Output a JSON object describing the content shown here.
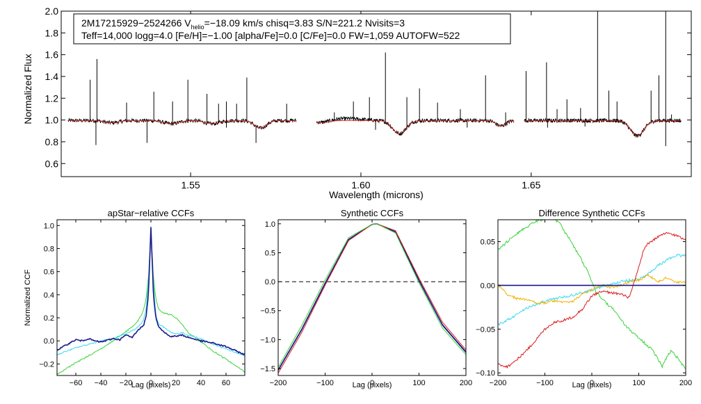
{
  "info": {
    "line1_a": "2M17215929−2524266  V",
    "line1_sub": "helio",
    "line1_b": "=−18.09 km/s  chisq=3.83  S/N=221.2  Nvisits=3",
    "line2": "Teff=14,000 logg=4.0 [Fe/H]=−1.00 [alpha/Fe]=0.0 [C/Fe]=0.0 FW=1,059 AUTOFW=522"
  },
  "colors": {
    "observed": "#000000",
    "model": "#e8261c",
    "navy": "#1a1a8c",
    "cyan": "#3ad8f0",
    "green": "#3ad13a",
    "orange": "#f0b400",
    "red": "#d81c1c"
  },
  "chart_data": [
    {
      "type": "line",
      "title": "",
      "xlabel": "Wavelength (microns)",
      "ylabel": "Normalized Flux",
      "xlim": [
        1.512,
        1.697
      ],
      "ylim": [
        0.48,
        2.0
      ],
      "xticks": [
        1.55,
        1.6,
        1.65
      ],
      "xtick_labels": [
        "1.55",
        "1.60",
        "1.65"
      ],
      "yticks": [
        0.6,
        0.8,
        1.0,
        1.2,
        1.4,
        1.6,
        1.8,
        2.0
      ],
      "ytick_labels": [
        "0.6",
        "0.8",
        "1.0",
        "1.2",
        "1.4",
        "1.6",
        "1.8",
        "2.0"
      ],
      "chips": [
        [
          1.514,
          1.581
        ],
        [
          1.587,
          1.645
        ],
        [
          1.648,
          1.694
        ]
      ],
      "broad_absorptions": [
        {
          "center": 1.5268,
          "depth": 0.02,
          "width": 0.003
        },
        {
          "center": 1.5443,
          "depth": 0.03,
          "width": 0.003
        },
        {
          "center": 1.5563,
          "depth": 0.03,
          "width": 0.003
        },
        {
          "center": 1.5705,
          "depth": 0.07,
          "width": 0.0025
        },
        {
          "center": 1.5885,
          "depth": 0.02,
          "width": 0.003
        },
        {
          "center": 1.6113,
          "depth": 0.12,
          "width": 0.0028
        },
        {
          "center": 1.6411,
          "depth": 0.05,
          "width": 0.002
        },
        {
          "center": 1.6811,
          "depth": 0.14,
          "width": 0.0028
        }
      ],
      "emission_spikes": [
        {
          "x": 1.5205,
          "y": 1.37
        },
        {
          "x": 1.5225,
          "y": 1.56
        },
        {
          "x": 1.5312,
          "y": 1.16
        },
        {
          "x": 1.5392,
          "y": 1.26
        },
        {
          "x": 1.5447,
          "y": 1.17
        },
        {
          "x": 1.5492,
          "y": 1.37
        },
        {
          "x": 1.5548,
          "y": 1.24
        },
        {
          "x": 1.5582,
          "y": 1.15
        },
        {
          "x": 1.5605,
          "y": 1.17
        },
        {
          "x": 1.5635,
          "y": 1.15
        },
        {
          "x": 1.5665,
          "y": 1.39
        },
        {
          "x": 1.5782,
          "y": 1.15
        },
        {
          "x": 1.5922,
          "y": 1.07
        },
        {
          "x": 1.5978,
          "y": 1.17
        },
        {
          "x": 1.6025,
          "y": 1.21
        },
        {
          "x": 1.6072,
          "y": 1.62
        },
        {
          "x": 1.6135,
          "y": 1.21
        },
        {
          "x": 1.6172,
          "y": 1.29
        },
        {
          "x": 1.6225,
          "y": 1.16
        },
        {
          "x": 1.6292,
          "y": 1.1
        },
        {
          "x": 1.6366,
          "y": 1.41
        },
        {
          "x": 1.6425,
          "y": 1.07
        },
        {
          "x": 1.6485,
          "y": 1.45
        },
        {
          "x": 1.6545,
          "y": 1.53
        },
        {
          "x": 1.6576,
          "y": 1.1
        },
        {
          "x": 1.6605,
          "y": 1.19
        },
        {
          "x": 1.6645,
          "y": 1.11
        },
        {
          "x": 1.6695,
          "y": 2.0
        },
        {
          "x": 1.6728,
          "y": 1.27
        },
        {
          "x": 1.6752,
          "y": 1.17
        },
        {
          "x": 1.6852,
          "y": 1.27
        },
        {
          "x": 1.6875,
          "y": 1.41
        },
        {
          "x": 1.6895,
          "y": 2.0
        },
        {
          "x": 1.6912,
          "y": 1.05
        }
      ],
      "absorption_spikes": [
        {
          "x": 1.5222,
          "y": 0.77
        },
        {
          "x": 1.5372,
          "y": 0.79
        },
        {
          "x": 1.5605,
          "y": 0.93
        },
        {
          "x": 1.5692,
          "y": 0.79
        },
        {
          "x": 1.6043,
          "y": 0.91
        },
        {
          "x": 1.6312,
          "y": 0.93
        },
        {
          "x": 1.6548,
          "y": 0.93
        },
        {
          "x": 1.6658,
          "y": 0.94
        },
        {
          "x": 1.6895,
          "y": 0.76
        }
      ],
      "series": [
        {
          "name": "observed spectrum",
          "color": "#000000"
        },
        {
          "name": "model",
          "color": "#e8261c"
        }
      ]
    },
    {
      "type": "line",
      "title": "apStar−relative CCFs",
      "xlabel": "Lag (pixels)",
      "ylabel": "Normalized CCF",
      "xlim": [
        -75,
        75
      ],
      "ylim": [
        -0.3,
        1.05
      ],
      "xticks": [
        -60,
        -40,
        -20,
        0,
        20,
        40,
        60
      ],
      "xtick_labels": [
        "−60",
        "−40",
        "−20",
        "0",
        "20",
        "40",
        "60"
      ],
      "yticks": [
        -0.2,
        0.0,
        0.2,
        0.4,
        0.6,
        0.8,
        1.0
      ],
      "ytick_labels": [
        "−0.2",
        "0.0",
        "0.2",
        "0.4",
        "0.6",
        "0.8",
        "1.0"
      ],
      "series": [
        {
          "name": "green",
          "color": "#3ad13a",
          "x": [
            -75,
            -60,
            -50,
            -40,
            -30,
            -20,
            -15,
            -10,
            -6,
            -4,
            -2,
            0,
            2,
            4,
            6,
            10,
            15,
            20,
            25,
            30,
            40,
            50,
            60,
            75
          ],
          "y": [
            -0.29,
            -0.19,
            -0.13,
            -0.07,
            0.0,
            0.08,
            0.12,
            0.18,
            0.26,
            0.36,
            0.55,
            0.95,
            0.55,
            0.36,
            0.28,
            0.24,
            0.23,
            0.2,
            0.14,
            0.07,
            -0.01,
            -0.09,
            -0.16,
            -0.27
          ]
        },
        {
          "name": "cyan",
          "color": "#3ad8f0",
          "x": [
            -75,
            -60,
            -50,
            -40,
            -30,
            -20,
            -15,
            -10,
            -6,
            -4,
            -2,
            0,
            2,
            4,
            6,
            10,
            15,
            20,
            25,
            30,
            40,
            50,
            60,
            75
          ],
          "y": [
            -0.12,
            -0.06,
            -0.03,
            0.0,
            0.02,
            0.06,
            0.09,
            0.12,
            0.18,
            0.26,
            0.5,
            0.99,
            0.5,
            0.22,
            0.15,
            0.12,
            0.08,
            0.06,
            0.07,
            0.05,
            0.02,
            -0.03,
            -0.07,
            -0.13
          ]
        },
        {
          "name": "navy",
          "color": "#1a1a8c",
          "x": [
            -75,
            -65,
            -60,
            -55,
            -50,
            -45,
            -40,
            -30,
            -25,
            -20,
            -15,
            -10,
            -6,
            -4,
            -2,
            0,
            2,
            4,
            6,
            10,
            15,
            20,
            25,
            30,
            40,
            50,
            60,
            75
          ],
          "y": [
            -0.08,
            -0.02,
            0.01,
            0.0,
            0.02,
            0.0,
            -0.01,
            0.02,
            0.01,
            0.05,
            0.03,
            0.1,
            0.13,
            0.2,
            0.4,
            0.99,
            0.4,
            0.2,
            0.13,
            0.08,
            0.04,
            0.04,
            0.05,
            0.03,
            0.0,
            -0.02,
            -0.05,
            -0.12
          ]
        }
      ]
    },
    {
      "type": "line",
      "title": "Synthetic CCFs",
      "xlabel": "Lag (pixels)",
      "ylabel": "",
      "xlim": [
        -200,
        200
      ],
      "ylim": [
        -1.62,
        1.07
      ],
      "xticks": [
        -200,
        -100,
        0,
        100,
        200
      ],
      "xtick_labels": [
        "−200",
        "−100",
        "0",
        "100",
        "200"
      ],
      "yticks": [
        -1.5,
        -1.0,
        -0.5,
        0.0,
        0.5,
        1.0
      ],
      "ytick_labels": [
        "−1.5",
        "−1.0",
        "−0.5",
        "0.0",
        "0.5",
        "1.0"
      ],
      "hline": 0.0,
      "series": [
        {
          "name": "black",
          "color": "#000000",
          "x": [
            -200,
            -150,
            -100,
            -50,
            0,
            10,
            50,
            100,
            150,
            200
          ],
          "y": [
            -1.52,
            -0.82,
            -0.02,
            0.73,
            0.99,
            1.0,
            0.86,
            0.03,
            -0.74,
            -1.21
          ]
        },
        {
          "name": "navy",
          "color": "#1a1a8c",
          "x": [
            -200,
            -150,
            -100,
            -50,
            0,
            10,
            50,
            100,
            150,
            200
          ],
          "y": [
            -1.53,
            -0.83,
            -0.03,
            0.73,
            0.99,
            1.0,
            0.86,
            0.02,
            -0.75,
            -1.22
          ]
        },
        {
          "name": "red",
          "color": "#d81c1c",
          "x": [
            -200,
            -150,
            -100,
            -50,
            0,
            10,
            50,
            100,
            150,
            200
          ],
          "y": [
            -1.58,
            -0.88,
            -0.06,
            0.71,
            0.99,
            1.0,
            0.88,
            0.06,
            -0.7,
            -1.18
          ]
        },
        {
          "name": "green",
          "color": "#3ad13a",
          "x": [
            -200,
            -150,
            -100,
            -50,
            0,
            10,
            50,
            100,
            150,
            200
          ],
          "y": [
            -1.48,
            -0.76,
            0.03,
            0.76,
            0.99,
            1.0,
            0.84,
            -0.02,
            -0.8,
            -1.26
          ]
        }
      ]
    },
    {
      "type": "line",
      "title": "Difference Synthetic CCFs",
      "xlabel": "Lag (pixels)",
      "ylabel": "",
      "xlim": [
        -200,
        200
      ],
      "ylim": [
        -0.103,
        0.075
      ],
      "xticks": [
        -200,
        -100,
        0,
        100,
        200
      ],
      "xtick_labels": [
        "−200",
        "−100",
        "0",
        "100",
        "200"
      ],
      "yticks": [
        -0.1,
        -0.05,
        0.0,
        0.05
      ],
      "ytick_labels": [
        "−0.10",
        "−0.05",
        "0.00",
        "0.05"
      ],
      "series": [
        {
          "name": "green",
          "color": "#3ad13a",
          "x": [
            -200,
            -180,
            -150,
            -120,
            -100,
            -85,
            -70,
            -50,
            -30,
            -10,
            10,
            30,
            50,
            70,
            100,
            130,
            150,
            160,
            170,
            185,
            200
          ],
          "y": [
            0.04,
            0.05,
            0.063,
            0.073,
            0.076,
            0.077,
            0.072,
            0.055,
            0.037,
            0.017,
            -0.008,
            -0.02,
            -0.03,
            -0.045,
            -0.06,
            -0.074,
            -0.093,
            -0.082,
            -0.074,
            -0.085,
            -0.095
          ]
        },
        {
          "name": "cyan",
          "color": "#3ad8f0",
          "x": [
            -200,
            -170,
            -140,
            -100,
            -70,
            -40,
            -10,
            20,
            50,
            80,
            100,
            120,
            140,
            160,
            180,
            200
          ],
          "y": [
            -0.045,
            -0.037,
            -0.026,
            -0.018,
            -0.014,
            -0.011,
            -0.007,
            -0.002,
            0.003,
            0.006,
            0.007,
            0.013,
            0.022,
            0.029,
            0.034,
            0.034
          ]
        },
        {
          "name": "orange",
          "color": "#f0b400",
          "x": [
            -200,
            -180,
            -160,
            -140,
            -120,
            -100,
            -80,
            -60,
            -40,
            -20,
            0,
            20,
            40,
            60,
            80,
            100,
            120,
            140,
            160,
            180,
            200
          ],
          "y": [
            0.001,
            -0.01,
            -0.015,
            -0.016,
            -0.02,
            -0.02,
            -0.018,
            -0.02,
            -0.018,
            -0.01,
            -0.005,
            0.0,
            -0.002,
            0.0,
            0.004,
            0.006,
            0.012,
            0.004,
            0.009,
            0.003,
            0.004
          ]
        },
        {
          "name": "red",
          "color": "#d81c1c",
          "x": [
            -200,
            -180,
            -160,
            -140,
            -120,
            -100,
            -80,
            -60,
            -40,
            -20,
            0,
            20,
            40,
            60,
            80,
            100,
            110,
            120,
            140,
            160,
            180,
            200
          ],
          "y": [
            -0.09,
            -0.093,
            -0.085,
            -0.075,
            -0.063,
            -0.05,
            -0.042,
            -0.04,
            -0.036,
            -0.027,
            -0.012,
            -0.007,
            -0.008,
            -0.01,
            -0.014,
            0.02,
            0.04,
            0.048,
            0.055,
            0.06,
            0.057,
            0.052
          ]
        },
        {
          "name": "black",
          "color": "#000000",
          "x": [
            -200,
            200
          ],
          "y": [
            0.0,
            0.0
          ]
        },
        {
          "name": "navy",
          "color": "#1a1a8c",
          "x": [
            -200,
            200
          ],
          "y": [
            0.0,
            0.0
          ]
        }
      ]
    }
  ]
}
